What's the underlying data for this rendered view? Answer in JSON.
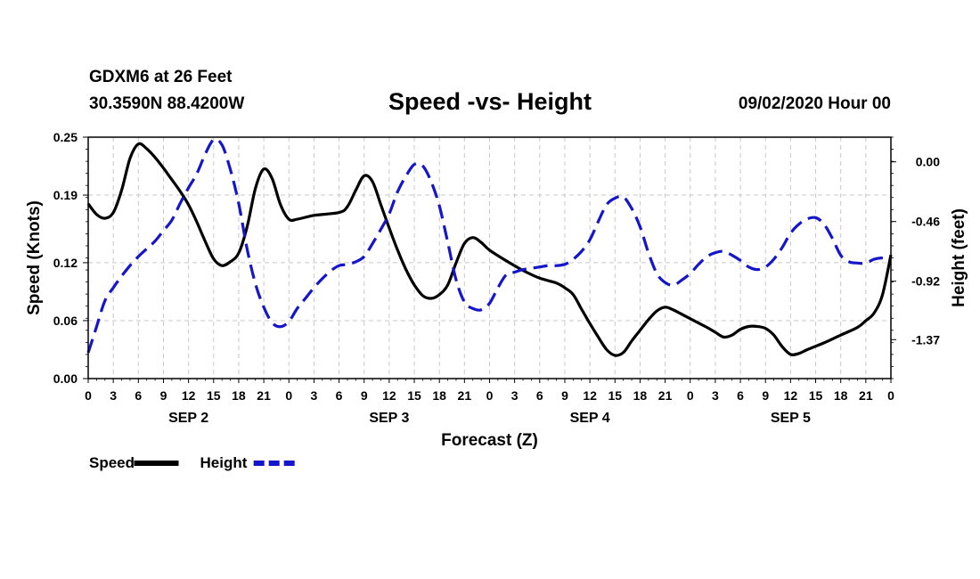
{
  "header": {
    "station": "GDXM6 at 26 Feet",
    "coords": "30.3590N 88.4200W",
    "title": "Speed -vs- Height",
    "datetime": "09/02/2020 Hour 00"
  },
  "colors": {
    "speed": "#000000",
    "height": "#1515cc",
    "grid": "#c8c8c8"
  },
  "chart_data": {
    "type": "line",
    "title": "Speed -vs- Height",
    "xlabel": "Forecast (Z)",
    "ylabel": "Speed (Knots)",
    "y2label": "Height (feet)",
    "x_unit": "hours since 09/02 00Z",
    "xlim": [
      0,
      96
    ],
    "ylim": [
      0,
      0.25
    ],
    "y2lim": [
      -1.67,
      0.19
    ],
    "x_ticks": [
      0,
      3,
      6,
      9,
      12,
      15,
      18,
      21,
      24,
      27,
      30,
      33,
      36,
      39,
      42,
      45,
      48,
      51,
      54,
      57,
      60,
      63,
      66,
      69,
      72,
      75,
      78,
      81,
      84,
      87,
      90,
      93,
      96
    ],
    "x_tick_labels": [
      "0",
      "3",
      "6",
      "9",
      "12",
      "15",
      "18",
      "21",
      "0",
      "3",
      "6",
      "9",
      "12",
      "15",
      "18",
      "21",
      "0",
      "3",
      "6",
      "9",
      "12",
      "15",
      "18",
      "21",
      "0",
      "3",
      "6",
      "9",
      "12",
      "15",
      "18",
      "21",
      "0"
    ],
    "day_labels": [
      {
        "label": "SEP 2",
        "x": 12
      },
      {
        "label": "SEP 3",
        "x": 36
      },
      {
        "label": "SEP 4",
        "x": 60
      },
      {
        "label": "SEP 5",
        "x": 84
      }
    ],
    "y_ticks": [
      0.0,
      0.06,
      0.12,
      0.19,
      0.25
    ],
    "y_tick_labels": [
      "0.00",
      "0.06",
      "0.12",
      "0.19",
      "0.25"
    ],
    "y2_ticks": [
      0.0,
      -0.46,
      -0.92,
      -1.37
    ],
    "y2_tick_labels": [
      "0.00",
      "-0.46",
      "-0.92",
      "-1.37"
    ],
    "grid": true,
    "legend": [
      {
        "name": "Speed",
        "style": "solid"
      },
      {
        "name": "Height",
        "style": "dashed"
      }
    ],
    "series": [
      {
        "name": "Speed",
        "axis": "left",
        "style": "solid",
        "points": [
          [
            0,
            0.181
          ],
          [
            1,
            0.17
          ],
          [
            2,
            0.166
          ],
          [
            3,
            0.172
          ],
          [
            4,
            0.195
          ],
          [
            5,
            0.228
          ],
          [
            6,
            0.243
          ],
          [
            7,
            0.238
          ],
          [
            8,
            0.229
          ],
          [
            9,
            0.218
          ],
          [
            10,
            0.206
          ],
          [
            11,
            0.194
          ],
          [
            12,
            0.18
          ],
          [
            13,
            0.162
          ],
          [
            14,
            0.142
          ],
          [
            15,
            0.124
          ],
          [
            16,
            0.117
          ],
          [
            17,
            0.121
          ],
          [
            18,
            0.13
          ],
          [
            19,
            0.157
          ],
          [
            20,
            0.197
          ],
          [
            21,
            0.217
          ],
          [
            22,
            0.207
          ],
          [
            23,
            0.18
          ],
          [
            24,
            0.165
          ],
          [
            25,
            0.165
          ],
          [
            27,
            0.169
          ],
          [
            30,
            0.172
          ],
          [
            31,
            0.178
          ],
          [
            32,
            0.195
          ],
          [
            33,
            0.21
          ],
          [
            34,
            0.204
          ],
          [
            35,
            0.18
          ],
          [
            36,
            0.156
          ],
          [
            37,
            0.133
          ],
          [
            38,
            0.113
          ],
          [
            39,
            0.097
          ],
          [
            40,
            0.086
          ],
          [
            41,
            0.083
          ],
          [
            42,
            0.087
          ],
          [
            43,
            0.097
          ],
          [
            44,
            0.12
          ],
          [
            45,
            0.14
          ],
          [
            46,
            0.146
          ],
          [
            47,
            0.141
          ],
          [
            48,
            0.133
          ],
          [
            50,
            0.122
          ],
          [
            52,
            0.112
          ],
          [
            54,
            0.104
          ],
          [
            56,
            0.099
          ],
          [
            57,
            0.094
          ],
          [
            58,
            0.087
          ],
          [
            59,
            0.072
          ],
          [
            60,
            0.057
          ],
          [
            61,
            0.043
          ],
          [
            62,
            0.03
          ],
          [
            63,
            0.024
          ],
          [
            64,
            0.027
          ],
          [
            65,
            0.039
          ],
          [
            66,
            0.05
          ],
          [
            67,
            0.061
          ],
          [
            68,
            0.07
          ],
          [
            69,
            0.074
          ],
          [
            70,
            0.071
          ],
          [
            72,
            0.062
          ],
          [
            74,
            0.053
          ],
          [
            75,
            0.048
          ],
          [
            76,
            0.043
          ],
          [
            77,
            0.045
          ],
          [
            78,
            0.051
          ],
          [
            79,
            0.054
          ],
          [
            80,
            0.054
          ],
          [
            81,
            0.052
          ],
          [
            82,
            0.045
          ],
          [
            83,
            0.033
          ],
          [
            84,
            0.025
          ],
          [
            85,
            0.026
          ],
          [
            86,
            0.03
          ],
          [
            88,
            0.037
          ],
          [
            90,
            0.045
          ],
          [
            92,
            0.053
          ],
          [
            93,
            0.06
          ],
          [
            94,
            0.068
          ],
          [
            95,
            0.087
          ],
          [
            96,
            0.128
          ]
        ]
      },
      {
        "name": "Height",
        "axis": "right",
        "style": "dashed",
        "points": [
          [
            0,
            -1.47
          ],
          [
            1,
            -1.27
          ],
          [
            2,
            -1.07
          ],
          [
            3,
            -0.97
          ],
          [
            4,
            -0.88
          ],
          [
            5,
            -0.8
          ],
          [
            6,
            -0.73
          ],
          [
            7,
            -0.67
          ],
          [
            8,
            -0.61
          ],
          [
            9,
            -0.53
          ],
          [
            10,
            -0.45
          ],
          [
            11,
            -0.32
          ],
          [
            12,
            -0.2
          ],
          [
            13,
            -0.09
          ],
          [
            14,
            0.06
          ],
          [
            15,
            0.17
          ],
          [
            16,
            0.13
          ],
          [
            17,
            -0.06
          ],
          [
            18,
            -0.32
          ],
          [
            19,
            -0.67
          ],
          [
            20,
            -0.94
          ],
          [
            21,
            -1.12
          ],
          [
            22,
            -1.24
          ],
          [
            23,
            -1.27
          ],
          [
            24,
            -1.23
          ],
          [
            25,
            -1.13
          ],
          [
            26,
            -1.05
          ],
          [
            27,
            -0.97
          ],
          [
            28,
            -0.9
          ],
          [
            29,
            -0.84
          ],
          [
            30,
            -0.8
          ],
          [
            31,
            -0.79
          ],
          [
            32,
            -0.77
          ],
          [
            33,
            -0.73
          ],
          [
            34,
            -0.63
          ],
          [
            35,
            -0.52
          ],
          [
            36,
            -0.4
          ],
          [
            37,
            -0.23
          ],
          [
            38,
            -0.11
          ],
          [
            39,
            -0.02
          ],
          [
            40,
            -0.03
          ],
          [
            41,
            -0.15
          ],
          [
            42,
            -0.34
          ],
          [
            43,
            -0.62
          ],
          [
            44,
            -0.91
          ],
          [
            45,
            -1.08
          ],
          [
            46,
            -1.13
          ],
          [
            47,
            -1.14
          ],
          [
            48,
            -1.09
          ],
          [
            49,
            -0.97
          ],
          [
            50,
            -0.87
          ],
          [
            51,
            -0.85
          ],
          [
            52,
            -0.83
          ],
          [
            53,
            -0.82
          ],
          [
            54,
            -0.81
          ],
          [
            55,
            -0.8
          ],
          [
            56,
            -0.8
          ],
          [
            57,
            -0.79
          ],
          [
            58,
            -0.75
          ],
          [
            59,
            -0.69
          ],
          [
            60,
            -0.6
          ],
          [
            61,
            -0.46
          ],
          [
            62,
            -0.33
          ],
          [
            63,
            -0.28
          ],
          [
            64,
            -0.27
          ],
          [
            65,
            -0.36
          ],
          [
            66,
            -0.5
          ],
          [
            67,
            -0.7
          ],
          [
            68,
            -0.86
          ],
          [
            69,
            -0.93
          ],
          [
            70,
            -0.95
          ],
          [
            71,
            -0.91
          ],
          [
            72,
            -0.86
          ],
          [
            73,
            -0.79
          ],
          [
            74,
            -0.73
          ],
          [
            75,
            -0.7
          ],
          [
            76,
            -0.69
          ],
          [
            77,
            -0.72
          ],
          [
            78,
            -0.76
          ],
          [
            79,
            -0.81
          ],
          [
            80,
            -0.83
          ],
          [
            81,
            -0.81
          ],
          [
            82,
            -0.75
          ],
          [
            83,
            -0.66
          ],
          [
            84,
            -0.55
          ],
          [
            85,
            -0.48
          ],
          [
            86,
            -0.44
          ],
          [
            87,
            -0.43
          ],
          [
            88,
            -0.48
          ],
          [
            89,
            -0.59
          ],
          [
            90,
            -0.72
          ],
          [
            91,
            -0.77
          ],
          [
            92,
            -0.78
          ],
          [
            93,
            -0.78
          ],
          [
            94,
            -0.75
          ],
          [
            95,
            -0.74
          ],
          [
            96,
            -0.74
          ]
        ]
      }
    ]
  }
}
